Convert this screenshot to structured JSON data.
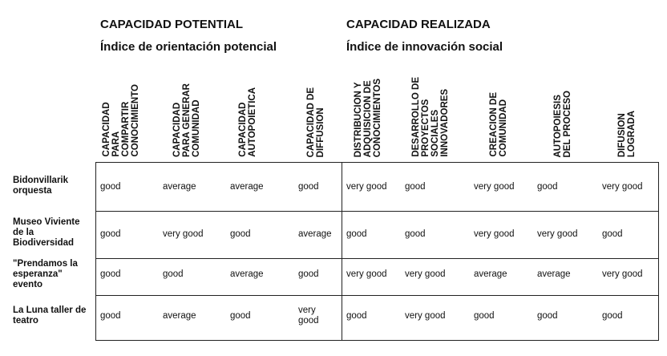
{
  "sections": {
    "potential": {
      "title": "CAPACIDAD POTENTIAL",
      "subtitle": "Índice de orientación potencial"
    },
    "realized": {
      "title": "CAPACIDAD REALIZADA",
      "subtitle": "Índice de innovación social"
    }
  },
  "columns": [
    "CAPACIDAD\nPARA\nCOMPARTIR\nCONOCIMIENTO",
    "CAPACIDAD\nPARA GENERAR\nCOMUNIDAD",
    "CAPACIDAD\nAUTOPOIETICA",
    "CAPACIDAD DE\nDIFFUSION",
    "DISTRIBUCION Y\nADQUISICION DE\nCONOCIMIENTOS",
    "DESARROLLO DE\nPROYECTOS\nSOCIALES\nINNOVADORES",
    "CREACION DE\nCOMUNIDAD",
    "AUTOPOIESIS\nDEL PROCESO",
    "DIFUSION\nLOGRADA"
  ],
  "rows": [
    {
      "label": "Bidonvillarik orquesta",
      "values": [
        "good",
        "average",
        "average",
        "good",
        "very good",
        "good",
        "very good",
        "good",
        "very good"
      ]
    },
    {
      "label": "Museo Viviente de la Biodiversidad",
      "values": [
        "good",
        "very good",
        "good",
        "average",
        "good",
        "good",
        "very good",
        "very good",
        "good"
      ]
    },
    {
      "label": "\"Prendamos la esperanza\" evento",
      "values": [
        "good",
        "good",
        "average",
        "good",
        "very good",
        "very good",
        "average",
        "average",
        "very good"
      ]
    },
    {
      "label": "La Luna taller de teatro",
      "values": [
        "good",
        "average",
        "good",
        "very\ngood",
        "good",
        "very good",
        "good",
        "good",
        "good"
      ]
    }
  ]
}
